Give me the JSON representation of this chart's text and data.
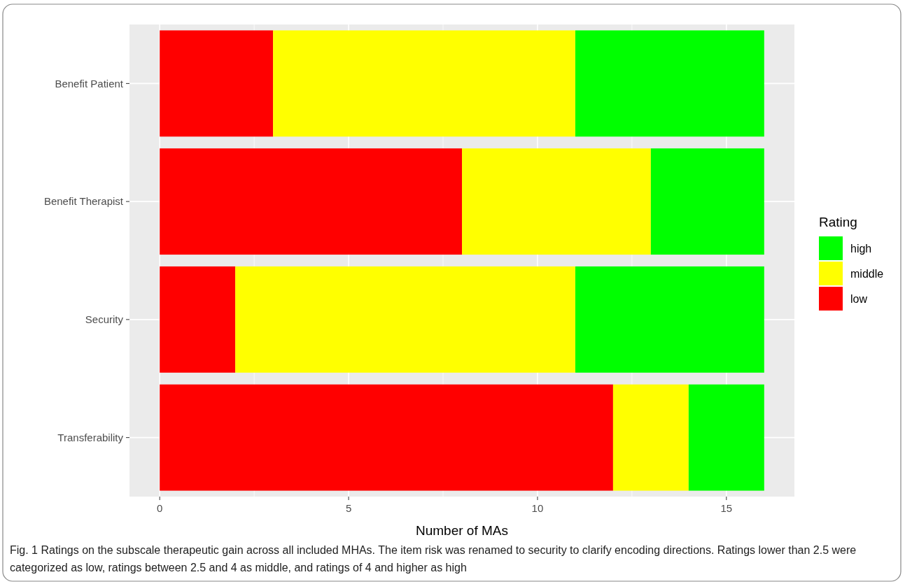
{
  "chart_data": {
    "type": "bar",
    "orientation": "horizontal",
    "stacked": true,
    "categories": [
      "Benefit Patient",
      "Benefit Therapist",
      "Security",
      "Transferability"
    ],
    "series": [
      {
        "name": "low",
        "color": "#ff0000",
        "values": [
          3,
          8,
          2,
          12
        ]
      },
      {
        "name": "middle",
        "color": "#ffff00",
        "values": [
          8,
          5,
          9,
          2
        ]
      },
      {
        "name": "high",
        "color": "#00ff00",
        "values": [
          5,
          3,
          5,
          2
        ]
      }
    ],
    "xlim": [
      -0.8,
      16.8
    ],
    "xticks": [
      0,
      5,
      10,
      15
    ],
    "xlabel": "Number of MAs",
    "legend_title": "Rating",
    "legend": "right",
    "grid": true,
    "annotations": [
      "Fig. 1  Ratings on the subscale therapeutic gain across all included MHAs. The item risk was renamed to security to clarify encoding directions. Ratings lower than 2.5 were categorized as low, ratings between 2.5 and 4 as middle, and ratings of 4 and higher as high"
    ]
  }
}
